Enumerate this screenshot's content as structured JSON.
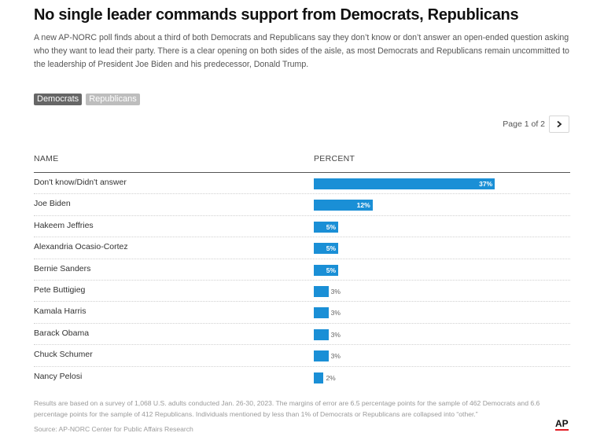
{
  "header": {
    "title": "No single leader commands support from Democrats, Republicans",
    "subtitle": "A new AP-NORC poll finds about a third of both Democrats and Republicans say they don’t know or don’t answer an open-ended question asking who they want to lead their party. There is a clear opening on both sides of the aisle, as most Democrats and Republicans remain uncommitted to the leadership of President Joe Biden and his predecessor, Donald Trump."
  },
  "tabs": [
    {
      "label": "Democrats",
      "active": true
    },
    {
      "label": "Republicans",
      "active": false
    }
  ],
  "pager": {
    "label": "Page 1 of 2",
    "icon": "chevron-right-icon"
  },
  "table": {
    "col_name": "NAME",
    "col_percent": "PERCENT"
  },
  "chart_data": {
    "type": "bar",
    "orientation": "horizontal",
    "categories": [
      "Don't know/Didn't answer",
      "Joe Biden",
      "Hakeem Jeffries",
      "Alexandria Ocasio-Cortez",
      "Bernie Sanders",
      "Pete Buttigieg",
      "Kamala Harris",
      "Barack Obama",
      "Chuck Schumer",
      "Nancy Pelosi"
    ],
    "values": [
      37,
      12,
      5,
      5,
      5,
      3,
      3,
      3,
      3,
      2
    ],
    "value_labels": [
      "37%",
      "12%",
      "5%",
      "5%",
      "5%",
      "3%",
      "3%",
      "3%",
      "3%",
      "2%"
    ],
    "xlim": [
      0,
      100
    ],
    "bar_color": "#1a8fd6"
  },
  "footer": {
    "note": "Results are based on a survey of 1,068 U.S. adults conducted Jan. 26-30, 2023. The margins of error are 6.5 percentage points for the sample of 462 Democrats and 6.6 percentage points for the sample of 412 Republicans. Individuals mentioned by less than 1% of Democrats or Republicans are collapsed into “other.”",
    "source": "Source: AP-NORC Center for Public Affairs Research",
    "logo": "AP"
  }
}
